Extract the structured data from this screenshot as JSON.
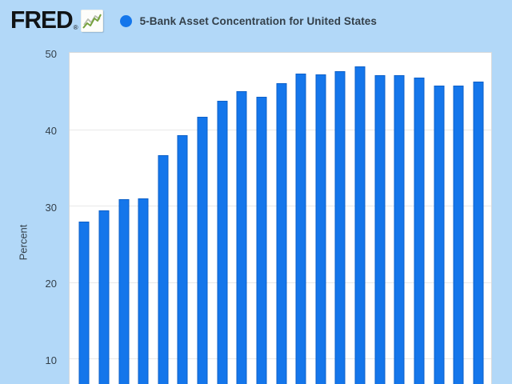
{
  "header": {
    "logo_text": "FRED",
    "registered_mark": "®",
    "legend_marker": "blue-dot",
    "title": "5-Bank Asset Concentration for United States"
  },
  "colors": {
    "background": "#b2d8f8",
    "plot_background": "#ffffff",
    "bar_fill": "#1476eb",
    "bar_edge": "#0d60c8",
    "gridline": "#e8e8e8",
    "plot_border": "#d6d9dc",
    "text": "#333f49",
    "logo_text": "#111416",
    "logo_icon_green": "#76a23e",
    "logo_icon_gray": "#b8bdae"
  },
  "chart_data": {
    "type": "bar",
    "title": "5-Bank Asset Concentration for United States",
    "xlabel": "",
    "ylabel": "Percent",
    "values": [
      28.0,
      29.4,
      30.9,
      31.0,
      36.7,
      39.3,
      41.7,
      43.8,
      45.0,
      44.3,
      46.1,
      47.3,
      47.2,
      47.6,
      48.3,
      47.1,
      47.1,
      46.8,
      45.8,
      45.8,
      46.3
    ],
    "bar_count": 21,
    "y_ticks": [
      50,
      40,
      30,
      20,
      10
    ],
    "y_gridlines": [
      40,
      30,
      20,
      10
    ],
    "ylim_visible": [
      6.65,
      50.04
    ],
    "x_tick_labels_visible": false,
    "grid": true,
    "legend_position": "top"
  }
}
